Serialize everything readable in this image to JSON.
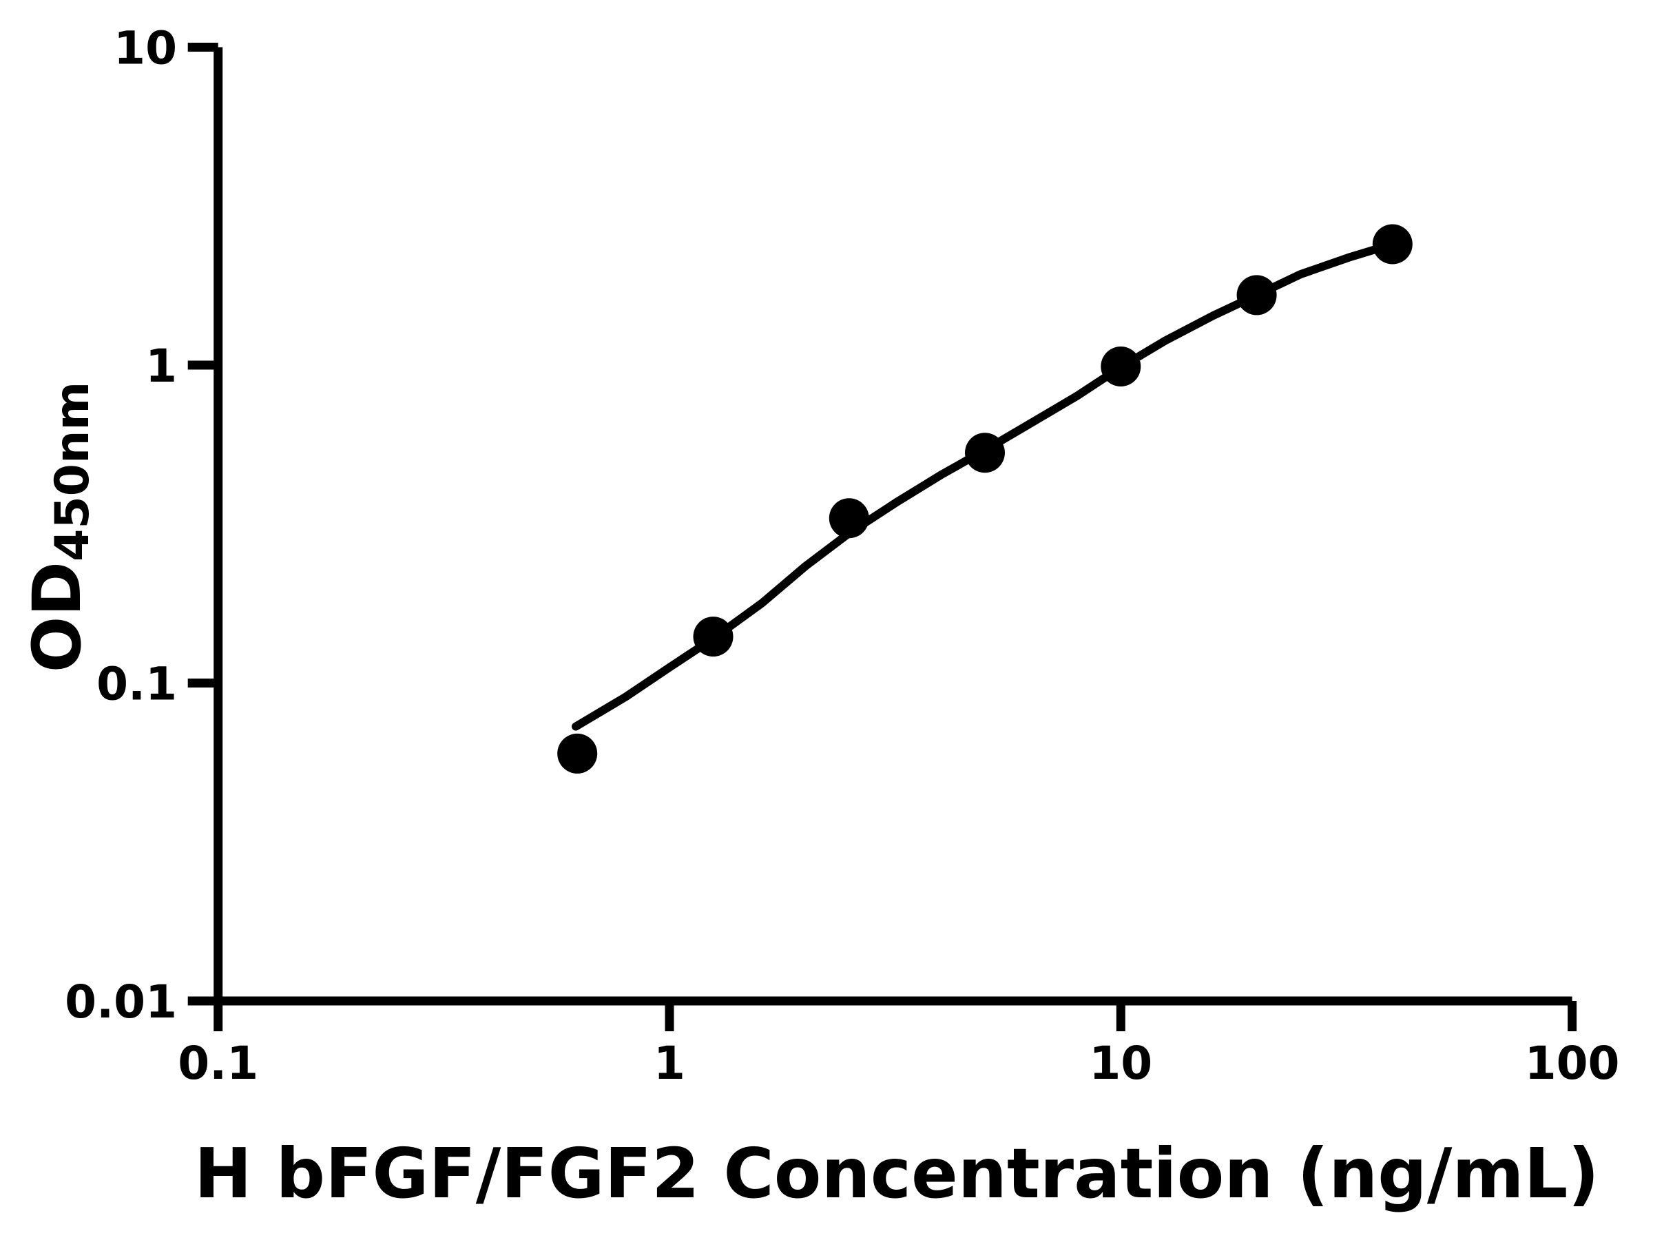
{
  "figure": {
    "background_color": "#ffffff",
    "foreground_color": "#000000"
  },
  "chart_data": {
    "type": "scatter",
    "title": "",
    "xlabel": "H bFGF/FGF2 Concentration (ng/mL)",
    "ylabel": "OD450nm",
    "ylabel_main": "OD",
    "ylabel_sub": "450nm",
    "x_scale": "log",
    "y_scale": "log",
    "xlim": [
      0.1,
      100
    ],
    "ylim": [
      0.01,
      10
    ],
    "grid": "off",
    "legend": "none",
    "x_ticks": [
      {
        "value": 0.1,
        "label": "0.1"
      },
      {
        "value": 1,
        "label": "1"
      },
      {
        "value": 10,
        "label": "10"
      },
      {
        "value": 100,
        "label": "100"
      }
    ],
    "y_ticks": [
      {
        "value": 0.01,
        "label": "0.01"
      },
      {
        "value": 0.1,
        "label": "0.1"
      },
      {
        "value": 1,
        "label": "1"
      },
      {
        "value": 10,
        "label": "10"
      }
    ],
    "series": [
      {
        "name": "standard-points",
        "type": "scatter",
        "marker": "filled-circle",
        "color": "#000000",
        "x": [
          0.625,
          1.25,
          2.5,
          5,
          10,
          20,
          40
        ],
        "y": [
          0.06,
          0.14,
          0.33,
          0.53,
          0.99,
          1.66,
          2.4
        ]
      },
      {
        "name": "fit-line",
        "type": "line",
        "color": "#000000",
        "x": [
          0.62,
          0.8,
          1.0,
          1.25,
          1.6,
          2.0,
          2.5,
          3.2,
          4.0,
          5.0,
          6.3,
          8.0,
          10,
          12.5,
          16,
          20,
          25,
          32,
          40
        ],
        "y": [
          0.073,
          0.0905,
          0.112,
          0.138,
          0.178,
          0.233,
          0.296,
          0.372,
          0.452,
          0.54,
          0.655,
          0.8,
          0.985,
          1.19,
          1.43,
          1.66,
          1.93,
          2.18,
          2.4
        ]
      }
    ]
  }
}
